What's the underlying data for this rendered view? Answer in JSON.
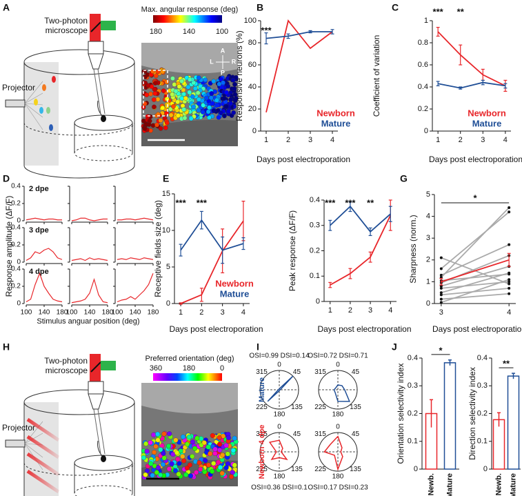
{
  "panels": [
    "A",
    "B",
    "C",
    "D",
    "E",
    "F",
    "G",
    "H",
    "I",
    "J"
  ],
  "setup_a": {
    "microscope": [
      "Two-photon",
      "microscope"
    ],
    "projector": "Projector",
    "colorbar_title": "Max. angular response (deg)",
    "colorbar_ticks": [
      180,
      140,
      100
    ],
    "compass": [
      "A",
      "L",
      "R",
      "P"
    ]
  },
  "setup_h": {
    "microscope": [
      "Two-photon",
      "microscope"
    ],
    "projector": "Projector",
    "colorbar_title": "Preferred orientation (deg)",
    "colorbar_ticks": [
      360,
      180,
      0
    ]
  },
  "chart_data": [
    {
      "type": "line",
      "ylabel": "Responsive neurons (%)",
      "xlabel": "Days post electroporation",
      "x": [
        1,
        2,
        3,
        4
      ],
      "xlim": [
        0.75,
        4.25
      ],
      "xticks": [
        1,
        2,
        3,
        4
      ],
      "ylim": [
        0,
        100
      ],
      "yticks": [
        0,
        20,
        40,
        60,
        80,
        100
      ],
      "legend": "lower right",
      "series": [
        {
          "name": "Newborn",
          "color": "#e8262a",
          "values": [
            17,
            100,
            75,
            90
          ]
        },
        {
          "name": "Mature",
          "color": "#1f4e96",
          "values": [
            84,
            86,
            90,
            90
          ],
          "errors": [
            5,
            2,
            1,
            2
          ]
        }
      ],
      "annotations": [
        {
          "text": "***",
          "x": 1
        }
      ]
    },
    {
      "type": "line",
      "ylabel": "Coefficient of variation",
      "xlabel": "Days post electroporation",
      "x": [
        1,
        2,
        3,
        4
      ],
      "xlim": [
        0.75,
        4.25
      ],
      "xticks": [
        1,
        2,
        3,
        4
      ],
      "ylim": [
        0,
        1
      ],
      "yticks": [
        0,
        0.2,
        0.4,
        0.6,
        0.8,
        1
      ],
      "legend": "lower right",
      "series": [
        {
          "name": "Newborn",
          "color": "#e8262a",
          "values": [
            0.9,
            0.69,
            0.51,
            0.41
          ],
          "errors": [
            0.04,
            0.09,
            0.05,
            0.05
          ]
        },
        {
          "name": "Mature",
          "color": "#1f4e96",
          "values": [
            0.43,
            0.39,
            0.44,
            0.41
          ],
          "errors": [
            0.02,
            0.01,
            0.02,
            0.02
          ]
        }
      ],
      "annotations": [
        {
          "text": "***",
          "x": 1
        },
        {
          "text": "**",
          "x": 2
        }
      ]
    },
    {
      "type": "small_multiples",
      "ylabel": "Response amplitude (ΔF/F)",
      "xlabel": "Stimulus anguar position (deg)",
      "color": "#e8262a",
      "x": [
        100,
        110,
        120,
        130,
        140,
        150,
        160,
        170,
        180
      ],
      "xlim": [
        100,
        180
      ],
      "xticks": [
        100,
        140,
        180
      ],
      "ylim": [
        0,
        0.4
      ],
      "yticks": [
        0,
        0.2,
        0.4
      ],
      "rows": [
        {
          "label": "2 dpe",
          "curves": [
            [
              0.01,
              0.02,
              0.03,
              0.02,
              0.01,
              0.02,
              0.02,
              0.01,
              0.01
            ],
            [
              0,
              0.01,
              0.03,
              0.03,
              0.01,
              0,
              0.01,
              0.02,
              0.02
            ],
            [
              0.01,
              0.01,
              0.02,
              0.02,
              0.01,
              0.02,
              0.03,
              0.02,
              0.01
            ]
          ]
        },
        {
          "label": "3 dpe",
          "curves": [
            [
              0.02,
              0.05,
              0.12,
              0.1,
              0.14,
              0.16,
              0.12,
              0.05,
              0.03
            ],
            [
              0.02,
              0.03,
              0.04,
              0.02,
              0.05,
              0.03,
              0.04,
              0.03,
              0.02
            ],
            [
              0.03,
              0.04,
              0.03,
              0.05,
              0.04,
              0.03,
              0.05,
              0.04,
              0.03
            ]
          ]
        },
        {
          "label": "4 dpe",
          "curves": [
            [
              0.02,
              0.05,
              0.22,
              0.35,
              0.2,
              0.12,
              0.05,
              0.03,
              0.02
            ],
            [
              0.01,
              0.02,
              0.03,
              0.05,
              0.12,
              0.28,
              0.1,
              0.02,
              0.01
            ],
            [
              0.02,
              0.04,
              0.05,
              0.08,
              0.05,
              0.1,
              0.15,
              0.22,
              0.35
            ]
          ]
        }
      ]
    },
    {
      "type": "line",
      "ylabel": "Receptive fields size (deg)",
      "xlabel": "Days post electroporation",
      "x": [
        1,
        2,
        3,
        4
      ],
      "xlim": [
        0.7,
        4.3
      ],
      "xticks": [
        1,
        2,
        3,
        4
      ],
      "ylim": [
        0,
        15
      ],
      "yticks": [
        0,
        5,
        10,
        15
      ],
      "legend": "lower right",
      "series": [
        {
          "name": "Newborn",
          "color": "#e8262a",
          "values": [
            0,
            1.2,
            7.2,
            11.3
          ],
          "errors": [
            0.1,
            0.9,
            3,
            2.7
          ]
        },
        {
          "name": "Mature",
          "color": "#1f4e96",
          "values": [
            7.3,
            11.4,
            7.3,
            8.2
          ],
          "errors": [
            0.8,
            1.2,
            1.8,
            0.8
          ]
        }
      ],
      "annotations": [
        {
          "text": "***",
          "x": 1
        },
        {
          "text": "***",
          "x": 2
        }
      ]
    },
    {
      "type": "line",
      "ylabel": "Peak response (ΔF/F)",
      "xlabel": "Days post electroporation",
      "x": [
        1,
        2,
        3,
        4
      ],
      "xlim": [
        0.7,
        4.3
      ],
      "xticks": [
        1,
        2,
        3,
        4
      ],
      "ylim": [
        0,
        0.4
      ],
      "yticks": [
        0,
        0.1,
        0.2,
        0.3,
        0.4
      ],
      "series": [
        {
          "color": "#e8262a",
          "values": [
            0.065,
            0.11,
            0.175,
            0.34
          ],
          "errors": [
            0.01,
            0.02,
            0.02,
            0.06
          ]
        },
        {
          "color": "#1f4e96",
          "values": [
            0.3,
            0.375,
            0.275,
            0.345
          ],
          "errors": [
            0.02,
            0.02,
            0.015,
            0.03
          ]
        }
      ],
      "annotations": [
        {
          "text": "***",
          "x": 1
        },
        {
          "text": "***",
          "x": 2
        },
        {
          "text": "**",
          "x": 3
        }
      ]
    },
    {
      "type": "line",
      "ylabel": "Sharpness (norm.)",
      "xlabel": "Days post electroporation",
      "x": [
        3,
        4
      ],
      "xlim": [
        2.9,
        4.1
      ],
      "xticks": [
        3,
        4
      ],
      "ylim": [
        0,
        5
      ],
      "yticks": [
        0,
        1,
        2,
        3,
        4,
        5
      ],
      "markers": true,
      "series": [
        {
          "color": "#aaaaaa",
          "values": [
            2.1,
            0.9
          ]
        },
        {
          "color": "#aaaaaa",
          "values": [
            1.6,
            4.2
          ]
        },
        {
          "color": "#aaaaaa",
          "values": [
            1.3,
            2.7
          ]
        },
        {
          "color": "#aaaaaa",
          "values": [
            1.2,
            4.4
          ]
        },
        {
          "color": "#aaaaaa",
          "values": [
            1.05,
            1.35
          ]
        },
        {
          "color": "#aaaaaa",
          "values": [
            0.95,
            2.2
          ]
        },
        {
          "color": "#aaaaaa",
          "values": [
            0.8,
            1.7
          ]
        },
        {
          "color": "#aaaaaa",
          "values": [
            0.7,
            1.0
          ]
        },
        {
          "color": "#aaaaaa",
          "values": [
            0.5,
            1.4
          ]
        },
        {
          "color": "#aaaaaa",
          "values": [
            0.4,
            0.7
          ]
        },
        {
          "color": "#aaaaaa",
          "values": [
            0.2,
            0.45
          ]
        },
        {
          "color": "#aaaaaa",
          "values": [
            0.05,
            1.1
          ]
        },
        {
          "color": "#e8262a",
          "values": [
            1.0,
            2.0
          ],
          "errors": [
            0.15,
            0.3
          ]
        }
      ],
      "annotations": [
        {
          "text": "*",
          "x": 3.5,
          "bracket": [
            3,
            4
          ]
        }
      ]
    },
    {
      "type": "polar",
      "directions": [
        0,
        45,
        90,
        135,
        180,
        225,
        270,
        315
      ],
      "angle_ticks": [
        0,
        45,
        135,
        180,
        225,
        315
      ],
      "row_labels": [
        {
          "text": "Mature",
          "color": "#1f4e96"
        },
        {
          "text": "Newborn 4 dpe",
          "color": "#e8262a"
        }
      ],
      "plots": [
        {
          "title": "OSI=0.99 DSI=0.14",
          "color": "#1f4e96",
          "values": [
            0.05,
            1,
            0.05,
            0.02,
            0.05,
            0.85,
            0.05,
            0.02
          ]
        },
        {
          "title": "OSI=0.72 DSI=0.71",
          "color": "#1f4e96",
          "values": [
            0.25,
            0.3,
            0.35,
            0.85,
            0.6,
            0.2,
            0.2,
            0.15
          ]
        },
        {
          "title": "OSI=0.36 DSI=0.1",
          "color": "#e8262a",
          "values": [
            0.6,
            0.25,
            0.1,
            0.55,
            0.3,
            0.55,
            0.15,
            0.7
          ]
        },
        {
          "title": "OSI=0.17 DSI=0.23",
          "color": "#e8262a",
          "values": [
            0.8,
            0.3,
            0.15,
            0.35,
            0.9,
            0.25,
            0.7,
            0.55
          ]
        }
      ]
    },
    {
      "type": "bar",
      "ylabel": "Orientation selectivity index",
      "categories": [
        "Newb.",
        "Mature"
      ],
      "values": [
        0.2,
        0.383
      ],
      "errors": [
        0.05,
        0.01
      ],
      "colors": [
        "#e8262a",
        "#1f4e96"
      ],
      "ylim": [
        0,
        0.4
      ],
      "yticks": [
        0,
        0.1,
        0.2,
        0.3,
        0.4
      ],
      "annotations": [
        {
          "text": "*",
          "bracket": [
            0,
            1
          ]
        }
      ]
    },
    {
      "type": "bar",
      "ylabel": "Direction selectivity index",
      "categories": [
        "Newb.",
        "Mature"
      ],
      "values": [
        0.178,
        0.335
      ],
      "errors": [
        0.025,
        0.01
      ],
      "colors": [
        "#e8262a",
        "#1f4e96"
      ],
      "ylim": [
        0,
        0.4
      ],
      "yticks": [
        0,
        0.1,
        0.2,
        0.3,
        0.4
      ],
      "annotations": [
        {
          "text": "**",
          "bracket": [
            0,
            1
          ]
        }
      ]
    }
  ]
}
